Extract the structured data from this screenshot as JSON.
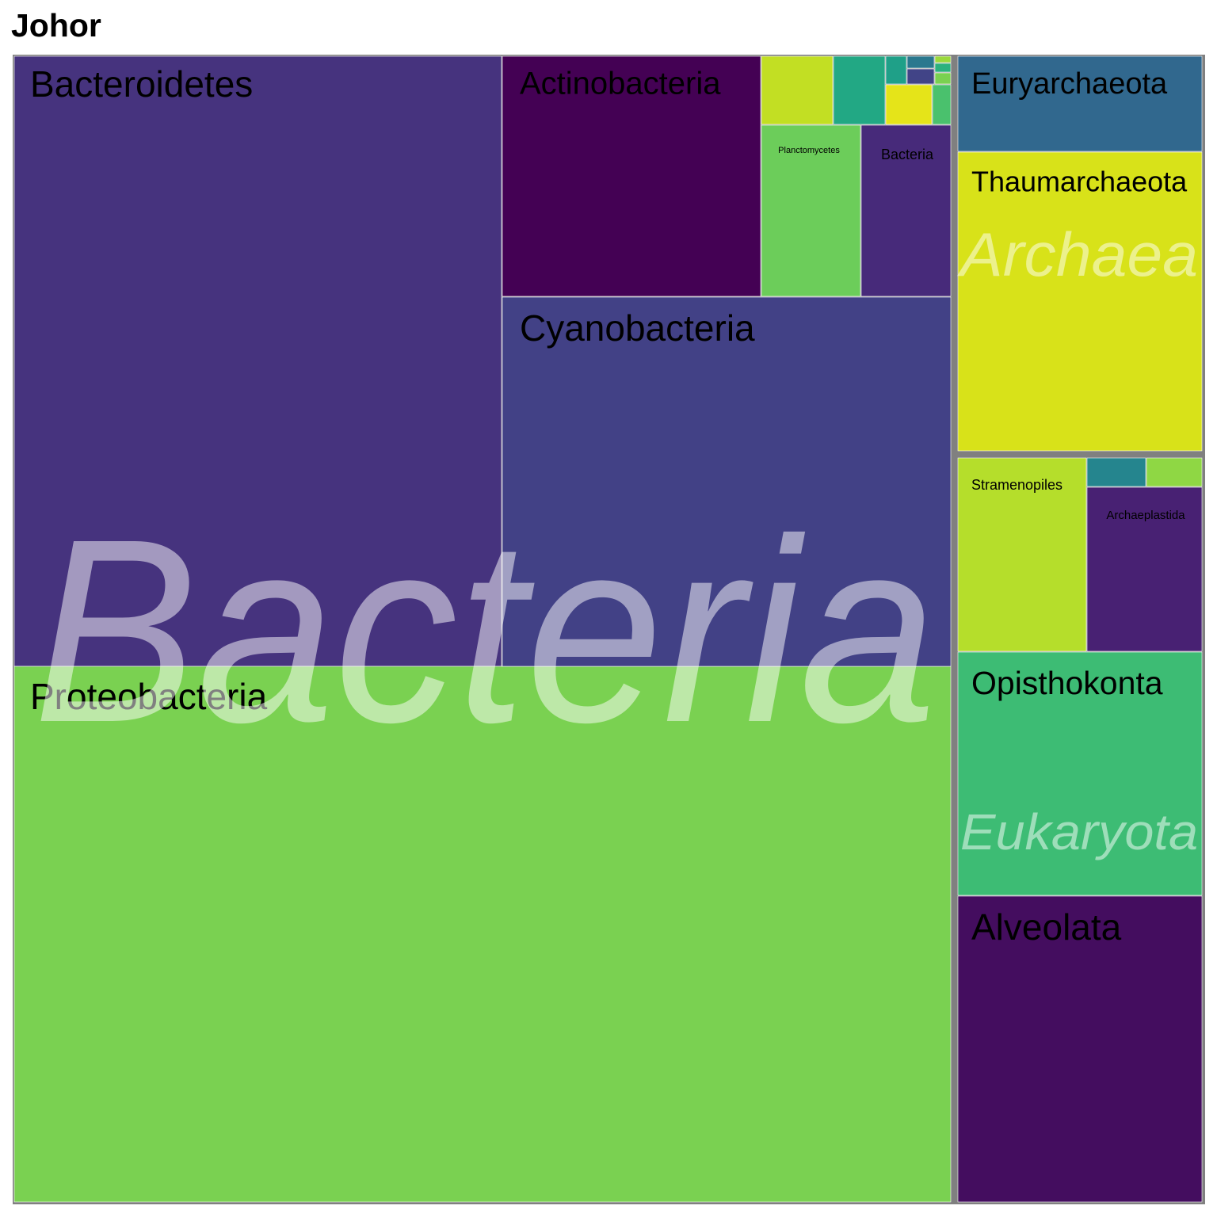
{
  "chart_data": {
    "type": "treemap",
    "title": "Johor",
    "groups": [
      {
        "name": "Bacteria",
        "children": [
          {
            "name": "Bacteroidetes",
            "value": 28.8,
            "color": "#46337e"
          },
          {
            "name": "Proteobacteria",
            "value": 44.0,
            "color": "#7ad151"
          },
          {
            "name": "Cyanobacteria",
            "value": 14.3,
            "color": "#424186"
          },
          {
            "name": "Actinobacteria",
            "value": 5.4,
            "color": "#440154"
          },
          {
            "name": "Planctomycetes",
            "value": 2.1,
            "color": "#6ccd5a"
          },
          {
            "name": "Bacteria",
            "value": 1.9,
            "color": "#472a7a"
          },
          {
            "name": "",
            "value": 0.85,
            "color": "#c2df23"
          },
          {
            "name": "",
            "value": 0.62,
            "color": "#22a884"
          },
          {
            "name": "",
            "value": 0.38,
            "color": "#e5e419"
          },
          {
            "name": "",
            "value": 0.25,
            "color": "#4ac16d"
          },
          {
            "name": "",
            "value": 0.2,
            "color": "#1fa088"
          },
          {
            "name": "",
            "value": 0.12,
            "color": "#414487"
          },
          {
            "name": "",
            "value": 0.1,
            "color": "#2a788e"
          },
          {
            "name": "",
            "value": 0.06,
            "color": "#7ad151"
          },
          {
            "name": "",
            "value": 0.05,
            "color": "#2cb17e"
          },
          {
            "name": "",
            "value": 0.04,
            "color": "#9bd93c"
          }
        ]
      },
      {
        "name": "Archaea",
        "children": [
          {
            "name": "Euryarchaeota",
            "value": 1.7,
            "color": "#31688e"
          },
          {
            "name": "Thaumarchaeota",
            "value": 5.3,
            "color": "#d8e219"
          }
        ]
      },
      {
        "name": "Eukaryota",
        "children": [
          {
            "name": "Alveolata",
            "value": 6.4,
            "color": "#440d5f"
          },
          {
            "name": "Opisthokonta",
            "value": 4.5,
            "color": "#3dbc74"
          },
          {
            "name": "Stramenopiles",
            "value": 2.2,
            "color": "#b5de2b"
          },
          {
            "name": "Archaeplastida",
            "value": 1.8,
            "color": "#482173"
          },
          {
            "name": "",
            "value": 0.35,
            "color": "#25858e"
          },
          {
            "name": "",
            "value": 0.3,
            "color": "#8fd744"
          }
        ]
      }
    ]
  }
}
